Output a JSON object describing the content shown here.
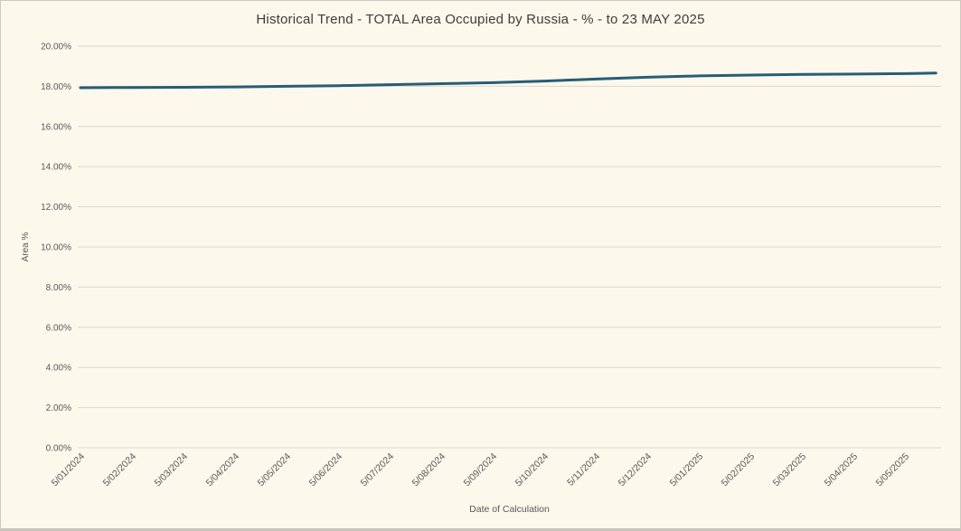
{
  "window": {
    "background_color": "#fcf8eb",
    "border_color": "#ccc9c0"
  },
  "chart_data": {
    "type": "line",
    "title": "Historical Trend - TOTAL Area Occupied by Russia - % - to 23 MAY 2025",
    "xlabel": "Date of Calculation",
    "ylabel": "Area %",
    "ylim": [
      0,
      20
    ],
    "grid": true,
    "legend": "none",
    "line_color": "#275d77",
    "grid_color": "#dbd7ca",
    "tick_text_color": "#595959",
    "title_text_color": "#3d3d3d",
    "y_ticks": [
      {
        "value": 20,
        "label": "20.00%"
      },
      {
        "value": 18,
        "label": "18.00%"
      },
      {
        "value": 16,
        "label": "16.00%"
      },
      {
        "value": 14,
        "label": "14.00%"
      },
      {
        "value": 12,
        "label": "12.00%"
      },
      {
        "value": 10,
        "label": "10.00%"
      },
      {
        "value": 8,
        "label": "8.00%"
      },
      {
        "value": 6,
        "label": "6.00%"
      },
      {
        "value": 4,
        "label": "4.00%"
      },
      {
        "value": 2,
        "label": "2.00%"
      },
      {
        "value": 0,
        "label": "0.00%"
      }
    ],
    "x_tick_labels": [
      "5/01/2024",
      "5/02/2024",
      "5/03/2024",
      "5/04/2024",
      "5/05/2024",
      "5/06/2024",
      "5/07/2024",
      "5/08/2024",
      "5/09/2024",
      "5/10/2024",
      "5/11/2024",
      "5/12/2024",
      "5/01/2025",
      "5/02/2025",
      "5/03/2025",
      "5/04/2025",
      "5/05/2025"
    ],
    "series": [
      {
        "name": "TOTAL Area Occupied by Russia %",
        "points": [
          {
            "date": "5/01/2024",
            "x_index": 0,
            "value": 17.93
          },
          {
            "date": "5/02/2024",
            "x_index": 1,
            "value": 17.94
          },
          {
            "date": "5/03/2024",
            "x_index": 2,
            "value": 17.95
          },
          {
            "date": "5/04/2024",
            "x_index": 3,
            "value": 17.97
          },
          {
            "date": "5/05/2024",
            "x_index": 4,
            "value": 18.0
          },
          {
            "date": "5/06/2024",
            "x_index": 5,
            "value": 18.03
          },
          {
            "date": "5/07/2024",
            "x_index": 6,
            "value": 18.08
          },
          {
            "date": "5/08/2024",
            "x_index": 7,
            "value": 18.13
          },
          {
            "date": "5/09/2024",
            "x_index": 8,
            "value": 18.18
          },
          {
            "date": "5/10/2024",
            "x_index": 9,
            "value": 18.26
          },
          {
            "date": "5/11/2024",
            "x_index": 10,
            "value": 18.36
          },
          {
            "date": "5/12/2024",
            "x_index": 11,
            "value": 18.45
          },
          {
            "date": "5/01/2025",
            "x_index": 12,
            "value": 18.52
          },
          {
            "date": "5/02/2025",
            "x_index": 13,
            "value": 18.56
          },
          {
            "date": "5/03/2025",
            "x_index": 14,
            "value": 18.59
          },
          {
            "date": "5/04/2025",
            "x_index": 15,
            "value": 18.61
          },
          {
            "date": "5/05/2025",
            "x_index": 16,
            "value": 18.63
          },
          {
            "date": "23/05/2025",
            "x_index": 16.6,
            "value": 18.66
          }
        ]
      }
    ]
  }
}
